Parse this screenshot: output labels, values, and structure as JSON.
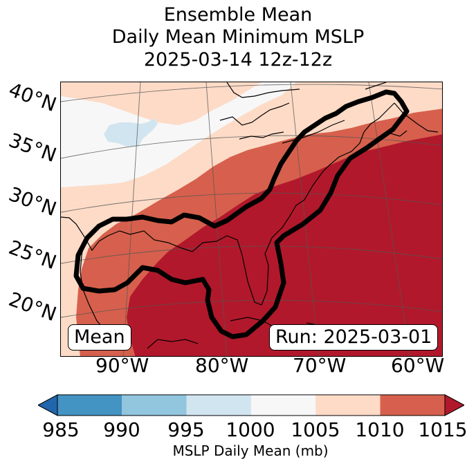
{
  "title": {
    "line1": "Ensemble Mean",
    "line2": "Daily Mean Minimum MSLP",
    "line3": "2025-03-14 12z-12z"
  },
  "lat_labels": [
    "40°N",
    "35°N",
    "30°N",
    "25°N",
    "20°N"
  ],
  "lon_labels": [
    "90°W",
    "80°W",
    "70°W",
    "60°W"
  ],
  "mean_label": "Mean",
  "run_label": "Run: 2025-03-01",
  "colorbar": {
    "ticks": [
      "985",
      "990",
      "995",
      "1000",
      "1005",
      "1010",
      "1015"
    ],
    "label": "MSLP Daily Mean (mb)",
    "colors": [
      "#2166ac",
      "#4393c3",
      "#92c5de",
      "#d1e5f0",
      "#f7f7f7",
      "#fddbc7",
      "#d6604d",
      "#b2182b"
    ]
  }
}
